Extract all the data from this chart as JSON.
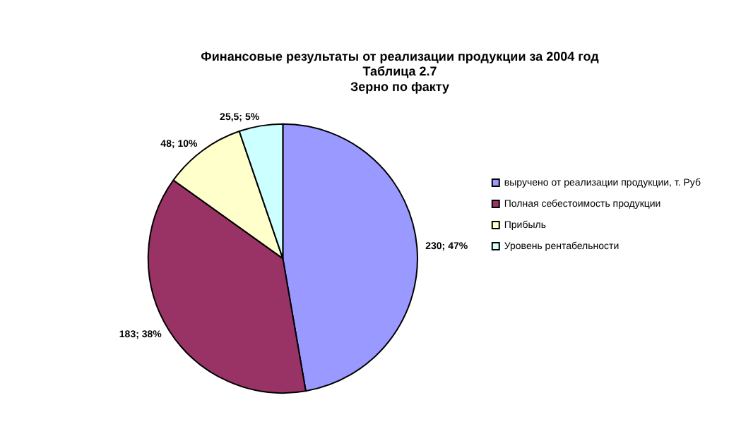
{
  "chart_data": {
    "type": "pie",
    "title": "Финансовые результаты от реализации продукции за 2004 год",
    "subtitle": "Таблица 2.7\nЗерно по факту",
    "categories": [
      "выручено от реализации продукции, т. Руб",
      "Полная себестоимость продукции",
      "Прибыль",
      "Уровень рентабельности"
    ],
    "values": [
      230,
      183,
      48,
      25.5
    ],
    "value_labels": [
      "230; 47%",
      "183; 38%",
      "48; 10%",
      "25,5; 5%"
    ],
    "colors": [
      "#9999ff",
      "#993366",
      "#ffffcc",
      "#ccffff"
    ],
    "legend": "right"
  }
}
